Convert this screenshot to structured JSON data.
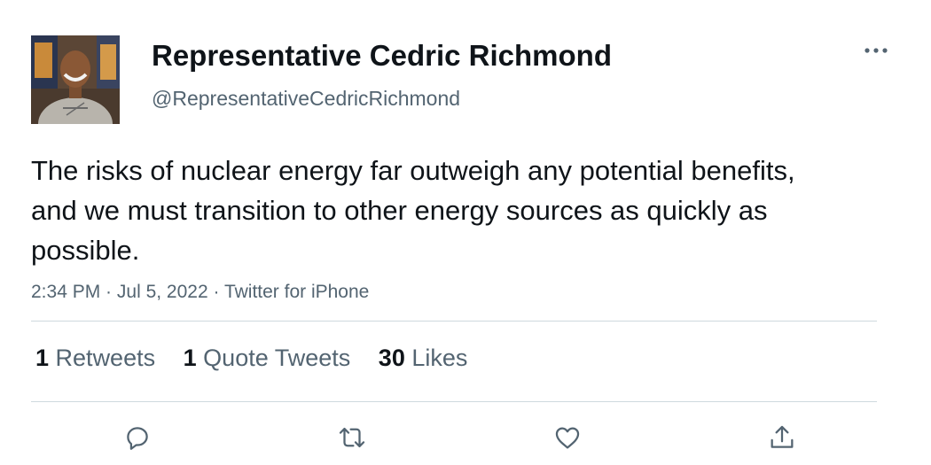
{
  "author": {
    "display_name": "Representative Cedric Richmond",
    "handle": "@RepresentativeCedricRichmond"
  },
  "tweet": {
    "text": "The risks of nuclear energy far outweigh any potential benefits, and we must transition to other energy sources as quickly as possible.",
    "time": "2:34 PM",
    "separator": " · ",
    "date": "Jul 5, 2022",
    "source": "Twitter for iPhone"
  },
  "stats": {
    "retweets_count": "1",
    "retweets_label": "Retweets",
    "quotes_count": "1",
    "quotes_label": "Quote Tweets",
    "likes_count": "30",
    "likes_label": "Likes"
  },
  "icons": {
    "more": "more-dots-icon",
    "reply": "reply-icon",
    "retweet": "retweet-icon",
    "like": "heart-icon",
    "share": "share-icon"
  },
  "colors": {
    "text_primary": "#0f1419",
    "text_secondary": "#536471",
    "divider": "#cfd9de"
  }
}
